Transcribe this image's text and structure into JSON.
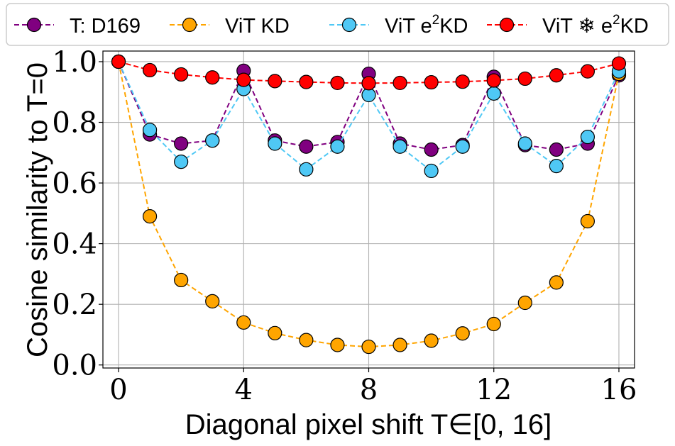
{
  "chart_data": {
    "type": "line",
    "xlabel": "Diagonal pixel shift T∈[0, 16]",
    "ylabel": "Cosine similarity to T=0",
    "xlim": [
      -0.5,
      16.5
    ],
    "ylim": [
      -0.01,
      1.035
    ],
    "xticks": [
      0,
      4,
      8,
      12,
      16
    ],
    "xtick_labels": [
      "0",
      "4",
      "8",
      "12",
      "16"
    ],
    "yticks": [
      0.0,
      0.2,
      0.4,
      0.6,
      0.8,
      1.0
    ],
    "ytick_labels": [
      "0.0",
      "0.2",
      "0.4",
      "0.6",
      "0.8",
      "1.0"
    ],
    "grid": true,
    "legend_position": "top",
    "x": [
      0,
      1,
      2,
      3,
      4,
      5,
      6,
      7,
      8,
      9,
      10,
      11,
      12,
      13,
      14,
      15,
      16
    ],
    "series": [
      {
        "name": "T: D169",
        "label_parts": [
          "T: D169"
        ],
        "color": "#800080",
        "marker_fill": "#800080",
        "values": [
          1.0,
          0.76,
          0.73,
          0.74,
          0.97,
          0.74,
          0.72,
          0.735,
          0.96,
          0.73,
          0.71,
          0.725,
          0.95,
          0.725,
          0.71,
          0.73,
          0.955
        ]
      },
      {
        "name": "ViT KD",
        "label_parts": [
          "ViT KD"
        ],
        "color": "#FFA500",
        "marker_fill": "#FFA500",
        "values": [
          1.0,
          0.49,
          0.28,
          0.21,
          0.14,
          0.105,
          0.082,
          0.066,
          0.06,
          0.066,
          0.08,
          0.104,
          0.135,
          0.205,
          0.272,
          0.474,
          0.96
        ]
      },
      {
        "name": "ViT e2KD",
        "label_parts": [
          "ViT e",
          "2",
          "KD"
        ],
        "color": "#4FC8F5",
        "marker_fill": "#4FC8F5",
        "values": [
          1.0,
          0.775,
          0.67,
          0.74,
          0.91,
          0.73,
          0.645,
          0.72,
          0.89,
          0.72,
          0.64,
          0.72,
          0.895,
          0.73,
          0.656,
          0.752,
          0.968
        ]
      },
      {
        "name": "ViT ❄ e2KD",
        "label_parts": [
          "ViT ❄ e",
          "2",
          "KD"
        ],
        "color": "#FF0000",
        "marker_fill": "#FF0000",
        "values": [
          1.0,
          0.972,
          0.958,
          0.948,
          0.94,
          0.936,
          0.933,
          0.93,
          0.929,
          0.93,
          0.932,
          0.934,
          0.938,
          0.944,
          0.955,
          0.968,
          0.994
        ]
      }
    ]
  }
}
